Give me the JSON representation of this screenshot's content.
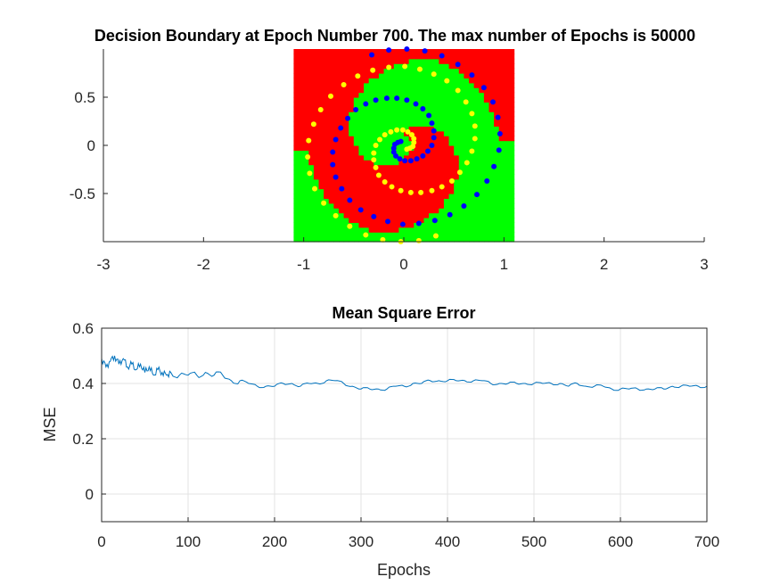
{
  "chart_data": [
    {
      "type": "scatter",
      "title": "Decision Boundary at Epoch Number 700. The max number of Epochs is 50000",
      "xlabel": "",
      "ylabel": "",
      "xlim": [
        -3,
        3
      ],
      "ylim": [
        -1,
        1
      ],
      "xticks": [
        -3,
        -2,
        -1,
        0,
        1,
        2,
        3
      ],
      "yticks": [
        -0.5,
        0,
        0.5
      ],
      "grid": false,
      "background_region": {
        "x_range": [
          -1.1,
          1.1
        ],
        "y_range": [
          -1,
          1
        ],
        "classes": [
          "red",
          "green"
        ],
        "colors": {
          "red": "#ff0000",
          "green": "#00ff00"
        }
      },
      "series": [
        {
          "color": "#0000ff",
          "points": [
            [
              -0.32,
              0.94
            ],
            [
              -0.15,
              0.99
            ],
            [
              0.03,
              1.0
            ],
            [
              0.21,
              0.98
            ],
            [
              0.38,
              0.93
            ],
            [
              0.54,
              0.84
            ],
            [
              0.68,
              0.73
            ],
            [
              0.8,
              0.6
            ],
            [
              0.89,
              0.45
            ],
            [
              0.94,
              0.29
            ],
            [
              0.96,
              0.12
            ],
            [
              0.95,
              -0.05
            ],
            [
              0.9,
              -0.22
            ],
            [
              0.83,
              -0.37
            ],
            [
              0.73,
              -0.51
            ],
            [
              0.6,
              -0.63
            ],
            [
              0.46,
              -0.72
            ],
            [
              0.31,
              -0.78
            ],
            [
              0.15,
              -0.81
            ],
            [
              -0.01,
              -0.82
            ],
            [
              -0.16,
              -0.79
            ],
            [
              -0.3,
              -0.74
            ],
            [
              -0.43,
              -0.67
            ],
            [
              -0.54,
              -0.57
            ],
            [
              -0.62,
              -0.45
            ],
            [
              -0.68,
              -0.33
            ],
            [
              -0.71,
              -0.2
            ],
            [
              -0.71,
              -0.07
            ],
            [
              -0.68,
              0.06
            ],
            [
              -0.63,
              0.18
            ],
            [
              -0.56,
              0.28
            ],
            [
              -0.48,
              0.37
            ],
            [
              -0.38,
              0.43
            ],
            [
              -0.28,
              0.47
            ],
            [
              -0.17,
              0.49
            ],
            [
              -0.07,
              0.49
            ],
            [
              0.03,
              0.47
            ],
            [
              0.12,
              0.43
            ],
            [
              0.19,
              0.38
            ],
            [
              0.25,
              0.31
            ],
            [
              0.28,
              0.23
            ],
            [
              0.3,
              0.15
            ],
            [
              0.3,
              0.08
            ],
            [
              0.28,
              0.0
            ],
            [
              0.24,
              -0.06
            ],
            [
              0.19,
              -0.11
            ],
            [
              0.13,
              -0.14
            ],
            [
              0.07,
              -0.16
            ],
            [
              0.01,
              -0.16
            ],
            [
              -0.04,
              -0.14
            ],
            [
              -0.08,
              -0.11
            ],
            [
              -0.1,
              -0.07
            ],
            [
              -0.1,
              -0.03
            ],
            [
              -0.09,
              0.01
            ],
            [
              -0.06,
              0.03
            ],
            [
              -0.03,
              0.04
            ]
          ]
        },
        {
          "color": "#ffff00",
          "points": [
            [
              0.32,
              -0.94
            ],
            [
              0.15,
              -0.99
            ],
            [
              -0.03,
              -1.0
            ],
            [
              -0.21,
              -0.98
            ],
            [
              -0.38,
              -0.93
            ],
            [
              -0.54,
              -0.84
            ],
            [
              -0.68,
              -0.73
            ],
            [
              -0.8,
              -0.6
            ],
            [
              -0.89,
              -0.45
            ],
            [
              -0.94,
              -0.29
            ],
            [
              -0.96,
              -0.12
            ],
            [
              -0.95,
              0.05
            ],
            [
              -0.9,
              0.22
            ],
            [
              -0.83,
              0.37
            ],
            [
              -0.73,
              0.51
            ],
            [
              -0.6,
              0.63
            ],
            [
              -0.46,
              0.72
            ],
            [
              -0.31,
              0.78
            ],
            [
              -0.15,
              0.81
            ],
            [
              0.01,
              0.82
            ],
            [
              0.16,
              0.79
            ],
            [
              0.3,
              0.74
            ],
            [
              0.43,
              0.67
            ],
            [
              0.54,
              0.57
            ],
            [
              0.62,
              0.45
            ],
            [
              0.68,
              0.33
            ],
            [
              0.71,
              0.2
            ],
            [
              0.71,
              0.07
            ],
            [
              0.68,
              -0.06
            ],
            [
              0.63,
              -0.18
            ],
            [
              0.56,
              -0.28
            ],
            [
              0.48,
              -0.37
            ],
            [
              0.38,
              -0.43
            ],
            [
              0.28,
              -0.47
            ],
            [
              0.17,
              -0.49
            ],
            [
              0.07,
              -0.49
            ],
            [
              -0.03,
              -0.47
            ],
            [
              -0.12,
              -0.43
            ],
            [
              -0.19,
              -0.38
            ],
            [
              -0.25,
              -0.31
            ],
            [
              -0.28,
              -0.23
            ],
            [
              -0.3,
              -0.15
            ],
            [
              -0.3,
              -0.08
            ],
            [
              -0.28,
              0.0
            ],
            [
              -0.24,
              0.06
            ],
            [
              -0.19,
              0.11
            ],
            [
              -0.13,
              0.14
            ],
            [
              -0.07,
              0.16
            ],
            [
              -0.01,
              0.16
            ],
            [
              0.04,
              0.14
            ],
            [
              0.08,
              0.11
            ],
            [
              0.1,
              0.07
            ],
            [
              0.1,
              0.03
            ],
            [
              0.09,
              -0.01
            ],
            [
              0.06,
              -0.03
            ],
            [
              0.03,
              -0.04
            ]
          ]
        }
      ]
    },
    {
      "type": "line",
      "title": "Mean Square Error",
      "xlabel": "Epochs",
      "ylabel": "MSE",
      "xlim": [
        0,
        700
      ],
      "ylim": [
        -0.1,
        0.6
      ],
      "xticks": [
        0,
        100,
        200,
        300,
        400,
        500,
        600,
        700
      ],
      "yticks": [
        0,
        0.2,
        0.4,
        0.6
      ],
      "grid": true,
      "series": [
        {
          "color": "#0072bd",
          "x": [
            0,
            5,
            10,
            15,
            20,
            25,
            30,
            35,
            40,
            45,
            50,
            55,
            60,
            65,
            70,
            75,
            80,
            90,
            100,
            110,
            120,
            130,
            140,
            150,
            160,
            170,
            180,
            190,
            200,
            210,
            220,
            230,
            240,
            250,
            260,
            270,
            280,
            290,
            300,
            310,
            320,
            330,
            340,
            350,
            360,
            370,
            380,
            390,
            400,
            410,
            420,
            430,
            440,
            450,
            460,
            470,
            480,
            490,
            500,
            510,
            520,
            530,
            540,
            550,
            560,
            570,
            580,
            590,
            600,
            610,
            620,
            630,
            640,
            650,
            660,
            670,
            680,
            690,
            700
          ],
          "y": [
            0.49,
            0.46,
            0.48,
            0.5,
            0.47,
            0.49,
            0.46,
            0.47,
            0.45,
            0.47,
            0.44,
            0.46,
            0.43,
            0.45,
            0.44,
            0.43,
            0.44,
            0.43,
            0.43,
            0.43,
            0.44,
            0.43,
            0.43,
            0.41,
            0.41,
            0.4,
            0.39,
            0.39,
            0.39,
            0.4,
            0.4,
            0.39,
            0.4,
            0.4,
            0.41,
            0.41,
            0.4,
            0.39,
            0.38,
            0.38,
            0.38,
            0.38,
            0.39,
            0.39,
            0.4,
            0.4,
            0.41,
            0.41,
            0.41,
            0.41,
            0.41,
            0.41,
            0.41,
            0.4,
            0.4,
            0.4,
            0.4,
            0.4,
            0.4,
            0.4,
            0.4,
            0.4,
            0.39,
            0.4,
            0.39,
            0.39,
            0.39,
            0.38,
            0.38,
            0.38,
            0.38,
            0.38,
            0.38,
            0.38,
            0.39,
            0.39,
            0.39,
            0.39,
            0.39
          ]
        }
      ]
    }
  ]
}
